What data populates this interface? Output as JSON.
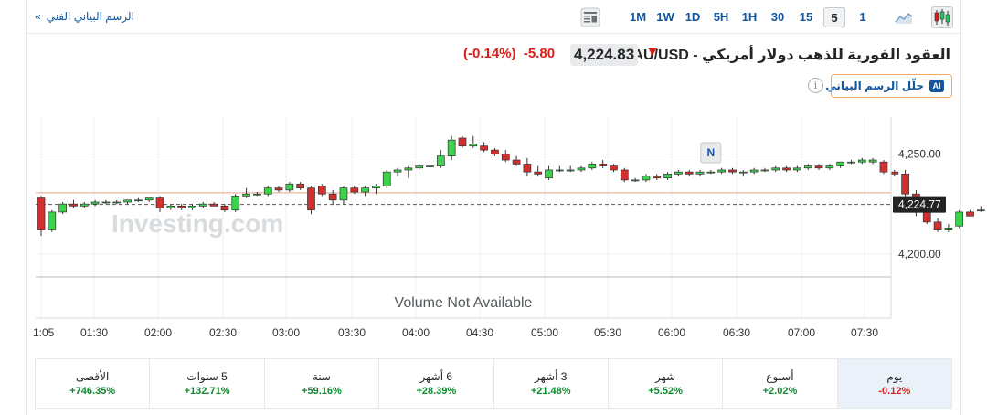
{
  "toolbar": {
    "chart_link": "الرسم البياني الفني",
    "chevron": "»",
    "timeframes": [
      "1M",
      "1W",
      "1D",
      "5H",
      "1H",
      "30",
      "15",
      "5",
      "1"
    ],
    "active_timeframe": "5"
  },
  "header": {
    "title": "XAU/USD - العقود الفورية للذهب دولار أمريكي",
    "price": "4,224.83",
    "change": "-5.80",
    "change_pct": "(-0.14%)",
    "direction": "down"
  },
  "ai_button": {
    "badge": "AI",
    "label": "حلّل الرسم البياني"
  },
  "info_icon": "i",
  "chart_data": {
    "type": "candlestick",
    "instrument": "XAU/USD",
    "interval": "5m",
    "x_tick_labels": [
      "1:05",
      "01:30",
      "02:00",
      "02:30",
      "03:00",
      "03:30",
      "04:00",
      "04:30",
      "05:00",
      "05:30",
      "06:00",
      "06:30",
      "07:00",
      "07:30"
    ],
    "y_tick_labels": [
      "4,250.00",
      "4,200.00"
    ],
    "y_ticks": [
      4250,
      4200
    ],
    "ylim": [
      4188.5,
      4268.5
    ],
    "last_price_label": "4,224.77",
    "last_price": 4224.77,
    "previous_close": 4230.6,
    "news_marker": "N",
    "news_marker_index": 62,
    "watermark": "Investing.com",
    "volume_text": "Volume Not Available",
    "candles": [
      [
        4228,
        4229,
        4209,
        4212
      ],
      [
        4212,
        4222,
        4211,
        4221
      ],
      [
        4221,
        4226,
        4220,
        4225
      ],
      [
        4225,
        4227,
        4223,
        4224
      ],
      [
        4224,
        4226,
        4223,
        4225
      ],
      [
        4225,
        4227,
        4224,
        4226
      ],
      [
        4226,
        4227,
        4225,
        4226
      ],
      [
        4226,
        4227,
        4225,
        4226
      ],
      [
        4226,
        4227,
        4225,
        4227
      ],
      [
        4227,
        4228,
        4226,
        4227
      ],
      [
        4227,
        4228,
        4226,
        4228
      ],
      [
        4228,
        4229,
        4221,
        4223
      ],
      [
        4223,
        4225,
        4222,
        4224
      ],
      [
        4224,
        4225,
        4222,
        4223
      ],
      [
        4223,
        4225,
        4222,
        4224
      ],
      [
        4224,
        4226,
        4223,
        4225
      ],
      [
        4225,
        4226,
        4224,
        4224
      ],
      [
        4224,
        4225,
        4221,
        4222
      ],
      [
        4222,
        4230,
        4221,
        4229
      ],
      [
        4229,
        4233,
        4228,
        4230
      ],
      [
        4230,
        4231,
        4229,
        4230
      ],
      [
        4230,
        4234,
        4229,
        4233
      ],
      [
        4233,
        4234,
        4231,
        4232
      ],
      [
        4232,
        4236,
        4231,
        4235
      ],
      [
        4235,
        4236,
        4232,
        4233
      ],
      [
        4233,
        4234,
        4220,
        4222
      ],
      [
        4234,
        4235,
        4229,
        4230
      ],
      [
        4230,
        4232,
        4225,
        4227
      ],
      [
        4227,
        4234,
        4225,
        4233
      ],
      [
        4233,
        4234,
        4230,
        4231
      ],
      [
        4231,
        4234,
        4229,
        4233
      ],
      [
        4233,
        4235,
        4230,
        4234
      ],
      [
        4234,
        4242,
        4233,
        4241
      ],
      [
        4241,
        4243,
        4239,
        4242
      ],
      [
        4242,
        4244,
        4238,
        4243
      ],
      [
        4243,
        4245,
        4242,
        4244
      ],
      [
        4244,
        4246,
        4243,
        4244
      ],
      [
        4244,
        4252,
        4243,
        4249
      ],
      [
        4249,
        4259,
        4247,
        4257
      ],
      [
        4258,
        4259,
        4253,
        4254
      ],
      [
        4254,
        4259,
        4253,
        4255
      ],
      [
        4254,
        4256,
        4251,
        4252
      ],
      [
        4252,
        4253,
        4249,
        4250
      ],
      [
        4250,
        4252,
        4246,
        4247
      ],
      [
        4247,
        4249,
        4244,
        4245
      ],
      [
        4245,
        4248,
        4239,
        4241
      ],
      [
        4241,
        4244,
        4239,
        4240
      ],
      [
        4238,
        4244,
        4237,
        4242
      ],
      [
        4242,
        4244,
        4241,
        4242
      ],
      [
        4242,
        4244,
        4241,
        4242
      ],
      [
        4242,
        4244,
        4241,
        4243
      ],
      [
        4243,
        4246,
        4242,
        4245
      ],
      [
        4245,
        4247,
        4243,
        4244
      ],
      [
        4244,
        4245,
        4241,
        4242
      ],
      [
        4242,
        4243,
        4236,
        4237
      ],
      [
        4237,
        4238,
        4236,
        4237
      ],
      [
        4237,
        4240,
        4236,
        4239
      ],
      [
        4239,
        4240,
        4237,
        4238
      ],
      [
        4238,
        4241,
        4237,
        4240
      ],
      [
        4240,
        4242,
        4239,
        4241
      ],
      [
        4241,
        4242,
        4239,
        4240
      ],
      [
        4240,
        4242,
        4239,
        4241
      ],
      [
        4241,
        4242,
        4240,
        4241
      ],
      [
        4241,
        4243,
        4240,
        4242
      ],
      [
        4242,
        4243,
        4240,
        4241
      ],
      [
        4241,
        4242,
        4239,
        4241
      ],
      [
        4241,
        4243,
        4240,
        4242
      ],
      [
        4242,
        4243,
        4241,
        4242
      ],
      [
        4242,
        4244,
        4241,
        4243
      ],
      [
        4243,
        4244,
        4241,
        4242
      ],
      [
        4242,
        4244,
        4241,
        4243
      ],
      [
        4243,
        4245,
        4242,
        4244
      ],
      [
        4244,
        4245,
        4242,
        4243
      ],
      [
        4243,
        4245,
        4242,
        4244
      ],
      [
        4244,
        4246,
        4243,
        4246
      ],
      [
        4246,
        4247,
        4245,
        4246
      ],
      [
        4246,
        4248,
        4245,
        4247
      ],
      [
        4246,
        4248,
        4245,
        4247
      ],
      [
        4246,
        4247,
        4240,
        4241
      ],
      [
        4241,
        4242,
        4239,
        4240
      ],
      [
        4240,
        4242,
        4228,
        4230
      ],
      [
        4230,
        4232,
        4219,
        4221
      ],
      [
        4221,
        4223,
        4215,
        4216
      ],
      [
        4216,
        4218,
        4211,
        4212
      ],
      [
        4212,
        4215,
        4211,
        4213
      ],
      [
        4214,
        4222,
        4213,
        4221
      ],
      [
        4221,
        4222,
        4219,
        4219
      ],
      [
        4222,
        4224,
        4221,
        4222
      ],
      [
        4222,
        4225,
        4221,
        4224
      ],
      [
        4224,
        4226,
        4223,
        4225
      ],
      [
        4225,
        4227,
        4224,
        4226
      ],
      [
        4226,
        4228,
        4225,
        4227
      ],
      [
        4227,
        4227,
        4222,
        4224
      ],
      [
        4224,
        4226,
        4223,
        4225
      ],
      [
        4225,
        4226,
        4224,
        4225
      ]
    ]
  },
  "performance": [
    {
      "label": "يوم",
      "value": "-0.12%",
      "sign": "neg",
      "active": true
    },
    {
      "label": "أسبوع",
      "value": "+2.02%",
      "sign": "pos"
    },
    {
      "label": "شهر",
      "value": "+5.52%",
      "sign": "pos"
    },
    {
      "label": "3 أشهر",
      "value": "+21.48%",
      "sign": "pos"
    },
    {
      "label": "6 أشهر",
      "value": "+28.39%",
      "sign": "pos"
    },
    {
      "label": "سنة",
      "value": "+59.16%",
      "sign": "pos"
    },
    {
      "label": "5 سنوات",
      "value": "+132.71%",
      "sign": "pos"
    },
    {
      "label": "الأقصى",
      "value": "+746.35%",
      "sign": "pos"
    }
  ]
}
